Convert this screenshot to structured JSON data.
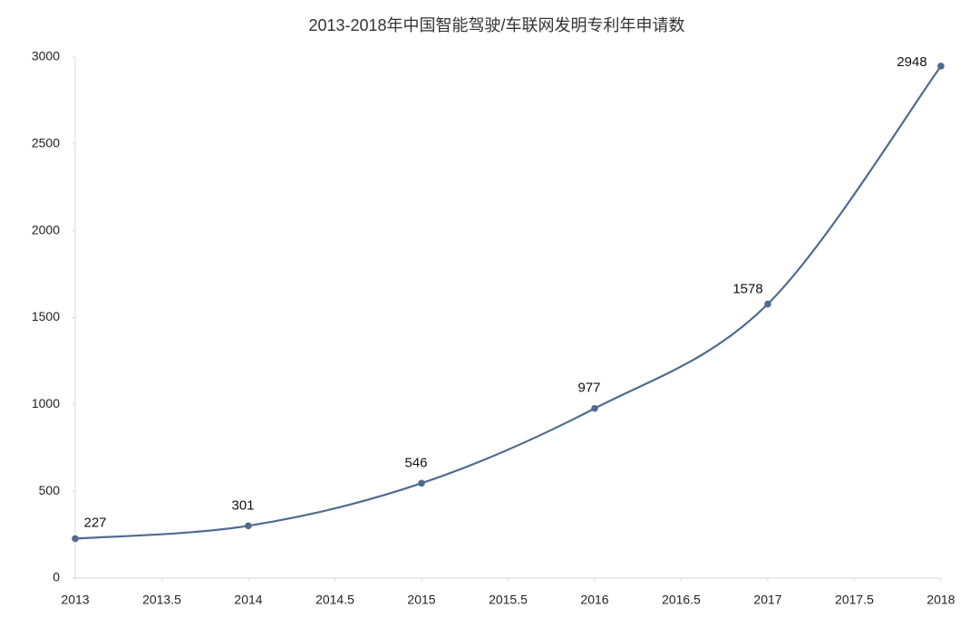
{
  "chart_data": {
    "type": "line",
    "title": "2013-2018年中国智能驾驶/车联网发明专利年申请数",
    "x": [
      2013,
      2014,
      2015,
      2016,
      2017,
      2018
    ],
    "series": [
      {
        "color": "#4f6b90",
        "values": [
          227,
          301,
          546,
          977,
          1578,
          2948
        ]
      }
    ],
    "xlim": [
      2013,
      2018
    ],
    "xticks": [
      2013,
      2013.5,
      2014,
      2014.5,
      2015,
      2015.5,
      2016,
      2016.5,
      2017,
      2017.5,
      2018
    ],
    "ylim": [
      0,
      3000
    ],
    "yticks": [
      0,
      500,
      1000,
      1500,
      2000,
      2500,
      3000
    ],
    "grid": false,
    "smooth": true,
    "data_labels": true
  }
}
